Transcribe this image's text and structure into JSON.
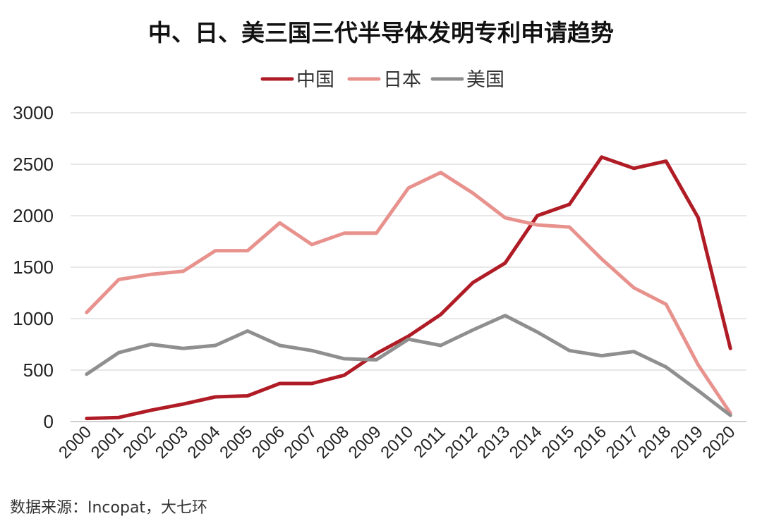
{
  "chart_data": {
    "type": "line",
    "title": "中、日、美三国三代半导体发明专利申请趋势",
    "xlabel": "",
    "ylabel": "",
    "ylim": [
      0,
      3000
    ],
    "yticks": [
      0,
      500,
      1000,
      1500,
      2000,
      2500,
      3000
    ],
    "categories": [
      "2000",
      "2001",
      "2002",
      "2003",
      "2004",
      "2005",
      "2006",
      "2007",
      "2008",
      "2009",
      "2010",
      "2011",
      "2012",
      "2013",
      "2014",
      "2015",
      "2016",
      "2017",
      "2018",
      "2019",
      "2020"
    ],
    "legend_position": "top-center",
    "grid": true,
    "series": [
      {
        "name": "中国",
        "color": "#b01c26",
        "values": [
          30,
          40,
          110,
          170,
          240,
          250,
          370,
          370,
          450,
          660,
          830,
          1040,
          1350,
          1540,
          2000,
          2110,
          2570,
          2460,
          2530,
          1980,
          710
        ]
      },
      {
        "name": "日本",
        "color": "#e8928e",
        "values": [
          1060,
          1380,
          1430,
          1460,
          1660,
          1660,
          1930,
          1720,
          1830,
          1830,
          2270,
          2420,
          2220,
          1980,
          1910,
          1890,
          1580,
          1300,
          1140,
          550,
          80
        ]
      },
      {
        "name": "美国",
        "color": "#8f8f8f",
        "values": [
          460,
          670,
          750,
          710,
          740,
          880,
          740,
          690,
          610,
          600,
          800,
          740,
          890,
          1030,
          870,
          690,
          640,
          680,
          530,
          300,
          60
        ]
      }
    ]
  },
  "source_note": "数据来源：Incopat，大七环"
}
